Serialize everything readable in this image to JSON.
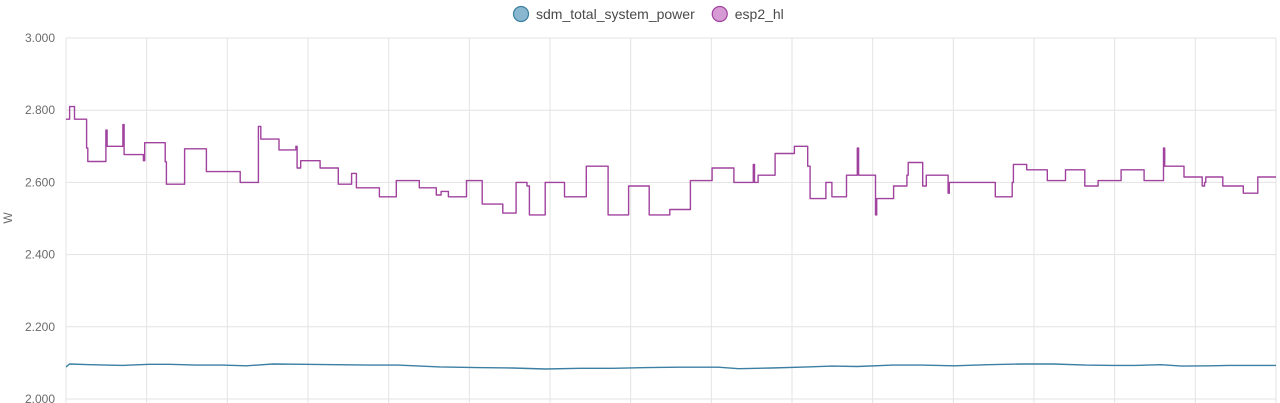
{
  "chart_data": {
    "type": "line",
    "ylabel": "W",
    "ylim": [
      2.0,
      3.0
    ],
    "ytick_labels": [
      "3.000",
      "2.800",
      "2.600",
      "2.400",
      "2.200",
      "2.000"
    ],
    "yticks": [
      3.0,
      2.8,
      2.6,
      2.4,
      2.2,
      2.0
    ],
    "x_ticks": 15,
    "x_range": [
      0,
      100
    ],
    "grid": true,
    "legend_position": "top-center",
    "series": [
      {
        "name": "sdm_total_system_power",
        "color": "#3b7fa3",
        "marker_fill": "#8ab7d0",
        "x": [
          0,
          0.3,
          2,
          4.7,
          6.9,
          8.5,
          10.8,
          12.9,
          14.9,
          17.1,
          19.7,
          22.3,
          25.1,
          27.4,
          30.9,
          33.9,
          36.9,
          39.6,
          42.5,
          45.2,
          48.1,
          50.6,
          53.9,
          55.6,
          58.3,
          61.3,
          63.3,
          65.4,
          68.3,
          70.7,
          73.4,
          76.2,
          79,
          81.6,
          84.3,
          86.5,
          88.4,
          90.5,
          92.2,
          94.6,
          96.1,
          100
        ],
        "values": [
          2.089,
          2.097,
          2.095,
          2.093,
          2.096,
          2.096,
          2.094,
          2.094,
          2.092,
          2.097,
          2.096,
          2.095,
          2.094,
          2.094,
          2.089,
          2.087,
          2.086,
          2.083,
          2.085,
          2.085,
          2.087,
          2.088,
          2.088,
          2.084,
          2.086,
          2.089,
          2.091,
          2.09,
          2.094,
          2.094,
          2.092,
          2.095,
          2.097,
          2.097,
          2.094,
          2.093,
          2.093,
          2.095,
          2.091,
          2.092,
          2.093,
          2.093
        ]
      },
      {
        "name": "esp2_hl",
        "color": "#a0429e",
        "marker_fill": "#d69ad4",
        "x": [
          0,
          0.3,
          0.3,
          0.7,
          0.7,
          1.7,
          1.7,
          1.8,
          1.8,
          3.3,
          3.3,
          3.4,
          3.4,
          3.5,
          3.5,
          4.7,
          4.7,
          4.8,
          4.8,
          5.1,
          5.1,
          6.4,
          6.4,
          6.5,
          6.5,
          6.6,
          6.6,
          8.2,
          8.2,
          8.3,
          8.3,
          9.8,
          9.8,
          11.6,
          11.6,
          14.4,
          14.4,
          15.9,
          15.9,
          16.1,
          16.1,
          16.3,
          16.3,
          17.6,
          17.6,
          19.0,
          19.0,
          19.1,
          19.1,
          19.4,
          19.4,
          21.0,
          21.0,
          22.5,
          22.5,
          23.6,
          23.6,
          24.0,
          24.0,
          25.9,
          25.9,
          27.3,
          27.3,
          29.2,
          29.2,
          30.6,
          30.6,
          31.0,
          31.0,
          31.6,
          31.6,
          33.1,
          33.1,
          34.4,
          34.4,
          36.1,
          36.1,
          37.2,
          37.2,
          38.0,
          38.0,
          38.1,
          38.1,
          38.3,
          38.3,
          39.6,
          39.6,
          41.2,
          41.2,
          43.0,
          43.0,
          44.8,
          44.8,
          46.5,
          46.5,
          48.2,
          48.2,
          49.9,
          49.9,
          51.6,
          51.6,
          53.4,
          53.4,
          55.2,
          55.2,
          56.8,
          56.8,
          56.9,
          56.9,
          57.2,
          57.2,
          58.6,
          58.6,
          60.2,
          60.2,
          61.3,
          61.3,
          61.5,
          61.5,
          62.8,
          62.8,
          63.3,
          63.3,
          64.5,
          64.5,
          65.4,
          65.4,
          65.5,
          65.5,
          66.9,
          66.9,
          67.0,
          67.0,
          68.4,
          68.4,
          69.5,
          69.5,
          69.6,
          69.6,
          70.8,
          70.8,
          71.1,
          71.1,
          72.9,
          72.9,
          73.0,
          73.0,
          74.8,
          74.8,
          76.6,
          76.6,
          76.8,
          76.8,
          78.2,
          78.2,
          78.3,
          78.3,
          79.4,
          79.4,
          81.1,
          81.1,
          82.6,
          82.6,
          84.2,
          84.2,
          85.3,
          85.3,
          87.2,
          87.2,
          89.1,
          89.1,
          90.7,
          90.7,
          90.8,
          90.8,
          92.3,
          92.3,
          92.4,
          92.4,
          93.9,
          93.9,
          94.1,
          94.1,
          94.2,
          94.2,
          95.6,
          95.6,
          97.3,
          97.3,
          98.5,
          98.5,
          100
        ],
        "values": [
          2.775,
          2.775,
          2.81,
          2.81,
          2.775,
          2.775,
          2.695,
          2.695,
          2.658,
          2.658,
          2.745,
          2.745,
          2.7,
          2.7,
          2.7,
          2.7,
          2.76,
          2.76,
          2.677,
          2.677,
          2.677,
          2.677,
          2.66,
          2.66,
          2.71,
          2.71,
          2.71,
          2.71,
          2.657,
          2.657,
          2.595,
          2.595,
          2.693,
          2.693,
          2.63,
          2.63,
          2.6,
          2.6,
          2.755,
          2.755,
          2.72,
          2.72,
          2.72,
          2.72,
          2.69,
          2.69,
          2.7,
          2.7,
          2.64,
          2.64,
          2.66,
          2.66,
          2.64,
          2.64,
          2.595,
          2.595,
          2.625,
          2.625,
          2.585,
          2.585,
          2.56,
          2.56,
          2.605,
          2.605,
          2.585,
          2.585,
          2.565,
          2.565,
          2.575,
          2.575,
          2.56,
          2.56,
          2.605,
          2.605,
          2.54,
          2.54,
          2.515,
          2.515,
          2.6,
          2.6,
          2.6,
          2.6,
          2.59,
          2.59,
          2.51,
          2.51,
          2.6,
          2.6,
          2.56,
          2.56,
          2.645,
          2.645,
          2.51,
          2.51,
          2.59,
          2.59,
          2.51,
          2.51,
          2.525,
          2.525,
          2.605,
          2.605,
          2.64,
          2.64,
          2.6,
          2.6,
          2.65,
          2.65,
          2.6,
          2.6,
          2.62,
          2.62,
          2.68,
          2.68,
          2.7,
          2.7,
          2.645,
          2.645,
          2.555,
          2.555,
          2.6,
          2.6,
          2.56,
          2.56,
          2.62,
          2.62,
          2.695,
          2.695,
          2.62,
          2.62,
          2.51,
          2.51,
          2.555,
          2.555,
          2.59,
          2.59,
          2.62,
          2.62,
          2.655,
          2.655,
          2.59,
          2.59,
          2.62,
          2.62,
          2.57,
          2.57,
          2.6,
          2.6,
          2.6,
          2.6,
          2.6,
          2.6,
          2.56,
          2.56,
          2.6,
          2.6,
          2.65,
          2.65,
          2.635,
          2.635,
          2.605,
          2.605,
          2.635,
          2.635,
          2.59,
          2.59,
          2.605,
          2.605,
          2.635,
          2.635,
          2.605,
          2.605,
          2.695,
          2.695,
          2.645,
          2.645,
          2.645,
          2.645,
          2.615,
          2.615,
          2.59,
          2.59,
          2.6,
          2.6,
          2.615,
          2.615,
          2.59,
          2.59,
          2.57,
          2.57,
          2.615,
          2.615
        ]
      }
    ]
  }
}
